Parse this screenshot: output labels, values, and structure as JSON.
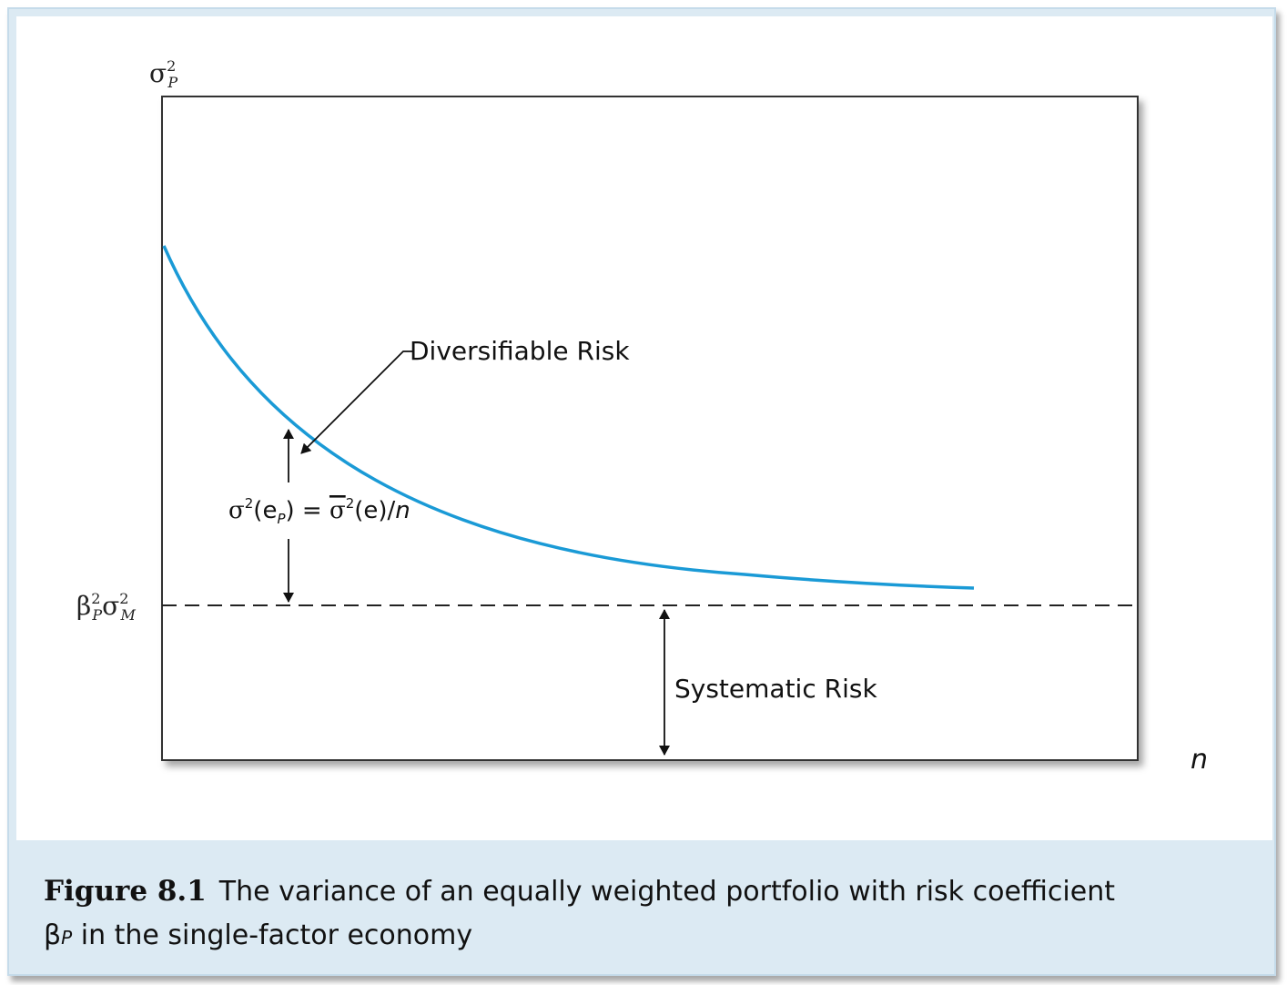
{
  "axes": {
    "y_label_base": "σ",
    "y_label_sup": "2",
    "y_label_sub": "P",
    "x_label": "n",
    "level_label_beta": "β",
    "level_label_beta_sup": "2",
    "level_label_beta_sub": "P",
    "level_label_sigma": "σ",
    "level_label_sigma_sup": "2",
    "level_label_sigma_sub": "M"
  },
  "annotations": {
    "diversifiable": "Diversifiable Risk",
    "systematic": "Systematic Risk",
    "formula_sigma": "σ",
    "formula_sup1": "2",
    "formula_e": "(e",
    "formula_sub": "P",
    "formula_mid": ") = ",
    "formula_sigma_bar": "σ",
    "formula_sup2": "2",
    "formula_end": "(e)/",
    "formula_n": "n"
  },
  "caption": {
    "figure_number": "Figure 8.1",
    "text_line1": "The variance of an equally weighted portfolio with risk coefficient",
    "beta": "β",
    "beta_sub": "P",
    "text_line2": " in the single-factor economy"
  },
  "colors": {
    "curve": "#1a9ad6",
    "background_band": "#dceaf3"
  }
}
